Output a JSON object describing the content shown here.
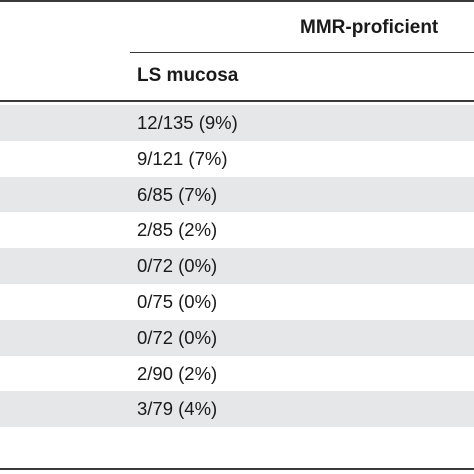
{
  "table": {
    "group_header": "MMR-proficient",
    "column_header": "LS mucosa",
    "rows": [
      "12/135 (9%)",
      "9/121 (7%)",
      "6/85 (7%)",
      "2/85 (2%)",
      "0/72 (0%)",
      "0/75 (0%)",
      "0/72 (0%)",
      "2/90 (2%)",
      "3/79 (4%)"
    ]
  }
}
